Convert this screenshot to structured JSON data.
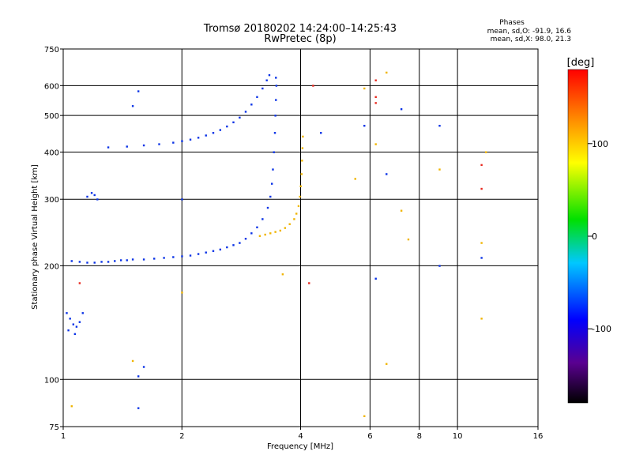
{
  "chart_data": {
    "type": "scatter",
    "title": "Tromsø 20180202 14:24:00–14:25:43",
    "subtitle": "RwPretec (8p)",
    "xlabel": "Frequency [MHz]",
    "ylabel": "Stationary phase Virtual Height [km]",
    "x_scale": "log",
    "y_scale": "log",
    "xlim": [
      1,
      16
    ],
    "ylim": [
      75,
      750
    ],
    "x_ticks": [
      1,
      2,
      4,
      6,
      8,
      10,
      16
    ],
    "x_tick_labels": [
      "1",
      "2",
      "4",
      "6",
      "8",
      "10",
      "16"
    ],
    "y_ticks": [
      75,
      100,
      200,
      300,
      400,
      500,
      600,
      750
    ],
    "y_tick_labels": [
      "75",
      "100",
      "200",
      "300",
      "400",
      "500",
      "600",
      "750"
    ],
    "grid": true,
    "phases_info": {
      "heading": "Phases",
      "line1": "mean, sd,O: -91.9, 16.6",
      "line2": "mean, sd,X:  98.0, 21.3"
    },
    "colorbar": {
      "unit": "[deg]",
      "range": [
        -180,
        180
      ],
      "ticks": [
        100,
        0,
        -100
      ],
      "tick_labels": [
        "100",
        "0",
        "-100"
      ]
    },
    "series": [
      {
        "mode": "O",
        "phase": -100,
        "color": "#0a32e6",
        "points": [
          [
            1.05,
            206
          ],
          [
            1.1,
            205
          ],
          [
            1.15,
            204
          ],
          [
            1.2,
            204
          ],
          [
            1.25,
            205
          ],
          [
            1.3,
            205
          ],
          [
            1.35,
            206
          ],
          [
            1.4,
            207
          ],
          [
            1.45,
            207
          ],
          [
            1.5,
            208
          ],
          [
            1.6,
            208
          ],
          [
            1.7,
            209
          ],
          [
            1.8,
            210
          ],
          [
            1.9,
            211
          ],
          [
            2.0,
            212
          ],
          [
            2.1,
            213
          ],
          [
            2.2,
            215
          ],
          [
            2.3,
            217
          ],
          [
            2.4,
            219
          ],
          [
            2.5,
            221
          ],
          [
            2.6,
            224
          ],
          [
            2.7,
            227
          ],
          [
            2.8,
            230
          ],
          [
            2.9,
            236
          ],
          [
            3.0,
            244
          ],
          [
            3.1,
            253
          ],
          [
            3.2,
            266
          ],
          [
            3.3,
            285
          ],
          [
            3.35,
            305
          ],
          [
            3.38,
            330
          ],
          [
            3.4,
            360
          ],
          [
            3.42,
            400
          ],
          [
            3.44,
            450
          ],
          [
            3.45,
            500
          ],
          [
            3.46,
            550
          ],
          [
            3.47,
            600
          ],
          [
            3.46,
            630
          ],
          [
            1.3,
            412
          ],
          [
            1.45,
            414
          ],
          [
            1.6,
            417
          ],
          [
            1.75,
            420
          ],
          [
            1.9,
            424
          ],
          [
            2.0,
            428
          ],
          [
            2.1,
            432
          ],
          [
            2.2,
            437
          ],
          [
            2.3,
            443
          ],
          [
            2.4,
            450
          ],
          [
            2.5,
            458
          ],
          [
            2.6,
            468
          ],
          [
            2.7,
            480
          ],
          [
            2.8,
            494
          ],
          [
            2.9,
            512
          ],
          [
            3.0,
            535
          ],
          [
            3.1,
            560
          ],
          [
            3.2,
            590
          ],
          [
            3.28,
            620
          ],
          [
            3.33,
            640
          ],
          [
            1.02,
            150
          ],
          [
            1.04,
            145
          ],
          [
            1.06,
            140
          ],
          [
            1.08,
            138
          ],
          [
            1.1,
            142
          ],
          [
            1.03,
            135
          ],
          [
            1.07,
            132
          ],
          [
            1.12,
            150
          ],
          [
            1.15,
            305
          ],
          [
            1.18,
            312
          ],
          [
            1.2,
            308
          ],
          [
            1.22,
            300
          ],
          [
            1.5,
            530
          ],
          [
            1.55,
            580
          ],
          [
            1.55,
            102
          ],
          [
            1.6,
            108
          ],
          [
            1.55,
            84
          ],
          [
            9.0,
            470
          ],
          [
            9.0,
            200
          ],
          [
            11.5,
            210
          ],
          [
            6.2,
            185
          ],
          [
            5.8,
            470
          ],
          [
            7.2,
            520
          ],
          [
            4.5,
            450
          ],
          [
            6.6,
            350
          ],
          [
            2.0,
            300
          ]
        ]
      },
      {
        "mode": "X",
        "phase": 100,
        "color": "#f0b400",
        "points": [
          [
            3.15,
            240
          ],
          [
            3.25,
            242
          ],
          [
            3.35,
            244
          ],
          [
            3.45,
            246
          ],
          [
            3.55,
            248
          ],
          [
            3.65,
            252
          ],
          [
            3.75,
            258
          ],
          [
            3.85,
            266
          ],
          [
            3.9,
            275
          ],
          [
            3.95,
            288
          ],
          [
            3.98,
            305
          ],
          [
            4.0,
            325
          ],
          [
            4.02,
            350
          ],
          [
            4.03,
            380
          ],
          [
            4.04,
            410
          ],
          [
            4.05,
            440
          ],
          [
            6.6,
            650
          ],
          [
            5.8,
            590
          ],
          [
            6.2,
            420
          ],
          [
            7.2,
            280
          ],
          [
            5.5,
            340
          ],
          [
            11.8,
            400
          ],
          [
            9.0,
            360
          ],
          [
            11.5,
            230
          ],
          [
            1.5,
            112
          ],
          [
            2.0,
            170
          ],
          [
            3.6,
            190
          ],
          [
            7.5,
            235
          ],
          [
            1.05,
            85
          ],
          [
            5.8,
            80
          ],
          [
            6.6,
            110
          ],
          [
            11.5,
            145
          ]
        ]
      },
      {
        "mode": "mixed",
        "phase": 160,
        "color": "#e8281e",
        "points": [
          [
            6.2,
            620
          ],
          [
            6.2,
            560
          ],
          [
            6.2,
            540
          ],
          [
            4.3,
            600
          ],
          [
            11.5,
            370
          ],
          [
            11.5,
            320
          ],
          [
            1.1,
            180
          ],
          [
            4.2,
            180
          ]
        ]
      }
    ]
  }
}
